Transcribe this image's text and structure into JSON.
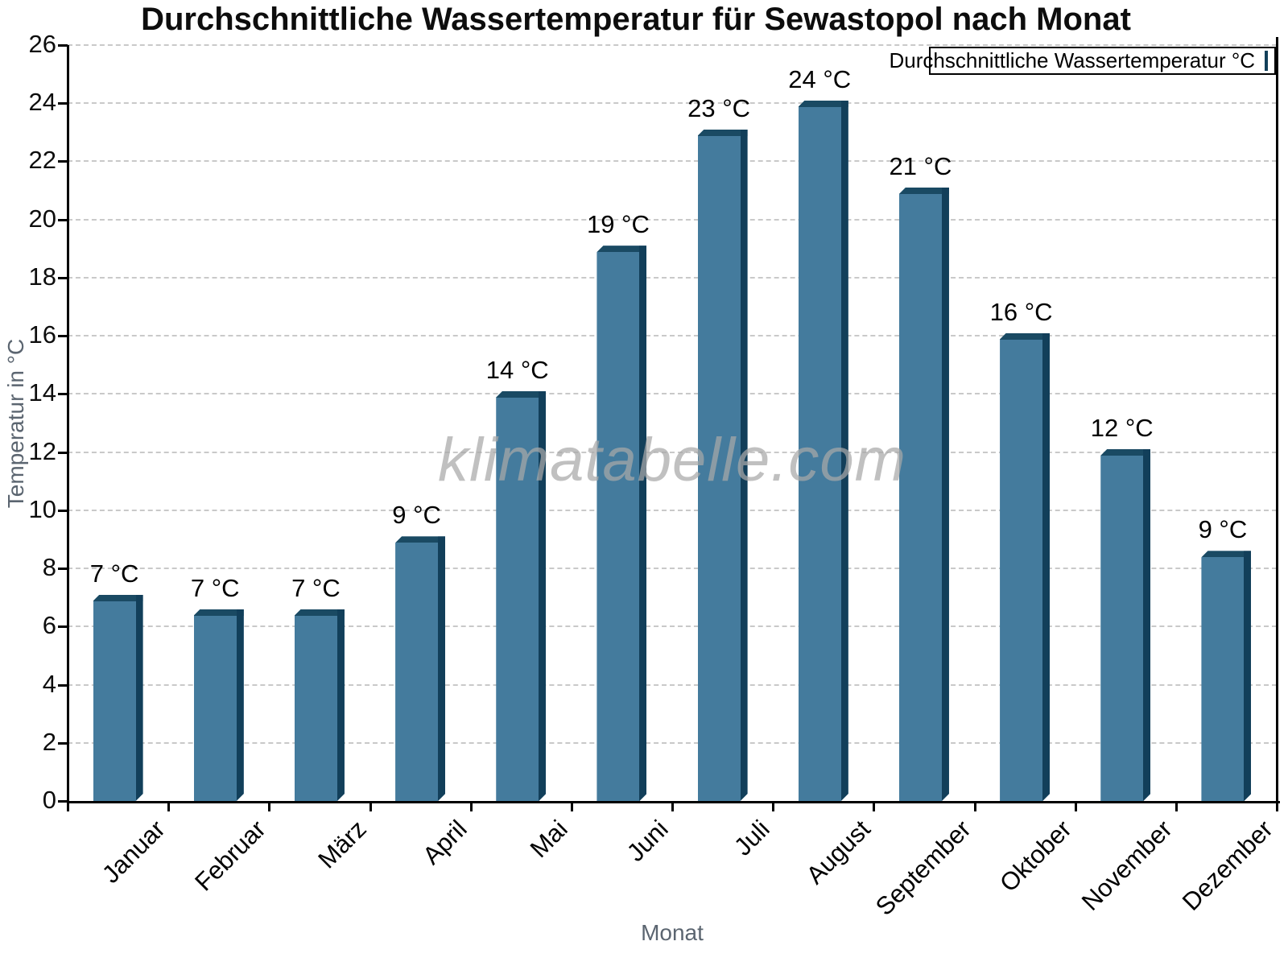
{
  "chart_data": {
    "type": "bar",
    "title": "Durchschnittliche Wassertemperatur für Sewastopol nach Monat",
    "xlabel": "Monat",
    "ylabel": "Temperatur in °C",
    "categories": [
      "Januar",
      "Februar",
      "März",
      "April",
      "Mai",
      "Juni",
      "Juli",
      "August",
      "September",
      "Oktober",
      "November",
      "Dezember"
    ],
    "values": [
      7.1,
      6.6,
      6.6,
      9.1,
      14.1,
      19.1,
      23.1,
      24.1,
      21.1,
      16.1,
      12.1,
      8.6
    ],
    "bar_labels": [
      "7 °C",
      "7 °C",
      "7 °C",
      "9 °C",
      "14 °C",
      "19 °C",
      "23 °C",
      "24 °C",
      "21 °C",
      "16 °C",
      "12 °C",
      "9 °C"
    ],
    "ylim": [
      0,
      26
    ],
    "ytick_step": 2,
    "grid": "horizontal-dashed",
    "legend": {
      "label": "Durchschnittliche Wassertemperatur °C",
      "position": "top-right"
    },
    "watermark": "klimatabelle.com",
    "colors": {
      "bar_face": "#447b9d",
      "bar_top_edge": "#1a4a63",
      "bar_right_edge": "#123f5a",
      "grid": "#c9c9c9",
      "axis": "#000000",
      "axis_title_text": "#5b6570",
      "legend_swatch": "#4a80a4"
    }
  }
}
